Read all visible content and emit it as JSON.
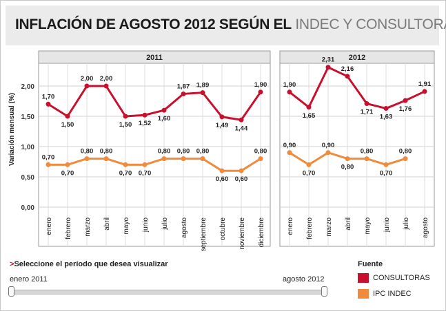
{
  "header": {
    "title_main": "INFLACIÓN DE AGOSTO 2012 SEGÚN EL",
    "title_accent": "INDEC Y CONSULTORAS"
  },
  "chart_data": {
    "type": "line",
    "ylabel": "Variación mensual (%)",
    "ylim": [
      0,
      2.5
    ],
    "yticks": [
      "0,00",
      "0,50",
      "1,00",
      "1,50",
      "2,00"
    ],
    "years": [
      {
        "label": "2011",
        "months": [
          "enero",
          "febrero",
          "marzo",
          "abril",
          "mayo",
          "junio",
          "julio",
          "agosto",
          "septiembre",
          "octubre",
          "noviembre",
          "diciembre"
        ]
      },
      {
        "label": "2012",
        "months": [
          "enero",
          "febrero",
          "marzo",
          "abril",
          "mayo",
          "junio",
          "julio",
          "agosto"
        ]
      }
    ],
    "series": [
      {
        "name": "CONSULTORAS",
        "color": "#c8102e",
        "values": [
          [
            1.7,
            1.5,
            2.0,
            2.0,
            1.5,
            1.52,
            1.6,
            1.87,
            1.89,
            1.49,
            1.44,
            1.9
          ],
          [
            1.9,
            1.65,
            2.31,
            2.16,
            1.71,
            1.63,
            1.76,
            1.91
          ]
        ],
        "labels": [
          [
            "1,70",
            "1,50",
            "2,00",
            "2,00",
            "1,50",
            "1,52",
            "1,60",
            "1,87",
            "1,89",
            "1,49",
            "1,44",
            "1,90"
          ],
          [
            "1,90",
            "1,65",
            "2,31",
            "2,16",
            "1,71",
            "1,63",
            "1,76",
            "1,91"
          ]
        ]
      },
      {
        "name": "IPC INDEC",
        "color": "#f08a3c",
        "values": [
          [
            0.7,
            0.7,
            0.8,
            0.8,
            0.7,
            0.7,
            0.8,
            0.8,
            0.8,
            0.6,
            0.6,
            0.8
          ],
          [
            0.9,
            0.7,
            0.9,
            0.8,
            0.8,
            0.7,
            0.8
          ]
        ],
        "labels": [
          [
            "0,70",
            "0,70",
            "0,80",
            "0,80",
            "0,70",
            "0,70",
            "0,80",
            "0,80",
            "0,80",
            "0,60",
            "0,60",
            "0,80"
          ],
          [
            "0,90",
            "0,70",
            "0,90",
            "0,80",
            "0,80",
            "0,70",
            "0,80"
          ]
        ]
      }
    ]
  },
  "controls": {
    "select_arrow": ">",
    "select_label": "Seleccione el período que desea visualizar",
    "range_start": "enero 2011",
    "range_end": "agosto 2012"
  },
  "legend": {
    "title": "Fuente"
  }
}
